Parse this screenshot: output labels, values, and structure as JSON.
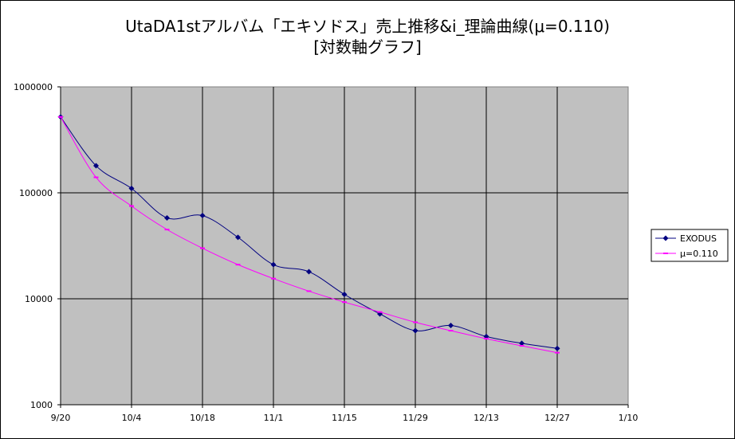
{
  "chart_data": {
    "type": "line",
    "title": "UtaDA1stアルバム「エキソドス」売上推移&i_理論曲線(μ=0.110)",
    "subtitle": "[対数軸グラフ]",
    "xlabel": "",
    "ylabel": "",
    "y_scale": "log",
    "ylim": [
      1000,
      1000000
    ],
    "x_ticks": [
      "9/20",
      "10/4",
      "10/18",
      "11/1",
      "11/15",
      "11/29",
      "12/13",
      "12/27",
      "1/10"
    ],
    "y_ticks": [
      "1000",
      "10000",
      "100000",
      "1000000"
    ],
    "grid": true,
    "legend_position": "right",
    "x": [
      "9/20",
      "9/27",
      "10/4",
      "10/11",
      "10/18",
      "10/25",
      "11/1",
      "11/8",
      "11/15",
      "11/22",
      "11/29",
      "12/6",
      "12/13",
      "12/20",
      "12/27"
    ],
    "series": [
      {
        "name": "EXODUS",
        "color": "#000080",
        "marker": "diamond",
        "values": [
          520000,
          180000,
          110000,
          58000,
          61000,
          38000,
          21000,
          18000,
          11000,
          7200,
          5000,
          5600,
          4400,
          3800,
          3400
        ]
      },
      {
        "name": "μ=0.110",
        "color": "#ff00ff",
        "marker": "dash",
        "values": [
          520000,
          140000,
          75000,
          45000,
          30000,
          21000,
          15500,
          11800,
          9300,
          7500,
          6000,
          5000,
          4200,
          3600,
          3100
        ]
      }
    ]
  },
  "colors": {
    "plot_background": "#c0c0c0",
    "grid": "#000000"
  }
}
